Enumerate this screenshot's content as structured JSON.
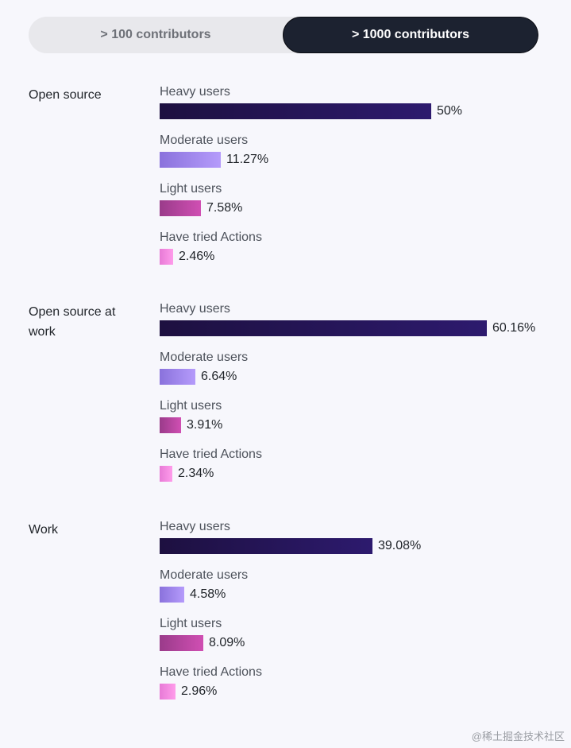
{
  "toggle": {
    "options": [
      "> 100 contributors",
      "> 1000 contributors"
    ],
    "selected": "> 1000 contributors"
  },
  "colors": {
    "heavy": [
      "#1d1040",
      "#2d1a6e"
    ],
    "moderate": [
      "#8a72dc",
      "#b59bfb"
    ],
    "light": [
      "#9a3b8a",
      "#d04fb3"
    ],
    "tried": [
      "#e77ad6",
      "#ff9ceb"
    ]
  },
  "chart_data": {
    "type": "bar",
    "orientation": "horizontal",
    "unit": "%",
    "xlim": [
      0,
      60.16
    ],
    "groups": [
      {
        "label": "Open source",
        "items": [
          {
            "name": "Heavy users",
            "value": 50,
            "display": "50%",
            "color_key": "heavy"
          },
          {
            "name": "Moderate users",
            "value": 11.27,
            "display": "11.27%",
            "color_key": "moderate"
          },
          {
            "name": "Light users",
            "value": 7.58,
            "display": "7.58%",
            "color_key": "light"
          },
          {
            "name": "Have tried Actions",
            "value": 2.46,
            "display": "2.46%",
            "color_key": "tried"
          }
        ]
      },
      {
        "label": "Open source at work",
        "items": [
          {
            "name": "Heavy users",
            "value": 60.16,
            "display": "60.16%",
            "color_key": "heavy"
          },
          {
            "name": "Moderate users",
            "value": 6.64,
            "display": "6.64%",
            "color_key": "moderate"
          },
          {
            "name": "Light users",
            "value": 3.91,
            "display": "3.91%",
            "color_key": "light"
          },
          {
            "name": "Have tried Actions",
            "value": 2.34,
            "display": "2.34%",
            "color_key": "tried"
          }
        ]
      },
      {
        "label": "Work",
        "items": [
          {
            "name": "Heavy users",
            "value": 39.08,
            "display": "39.08%",
            "color_key": "heavy"
          },
          {
            "name": "Moderate users",
            "value": 4.58,
            "display": "4.58%",
            "color_key": "moderate"
          },
          {
            "name": "Light users",
            "value": 8.09,
            "display": "8.09%",
            "color_key": "light"
          },
          {
            "name": "Have tried Actions",
            "value": 2.96,
            "display": "2.96%",
            "color_key": "tried"
          }
        ]
      }
    ]
  },
  "watermark": "@稀土掘金技术社区"
}
